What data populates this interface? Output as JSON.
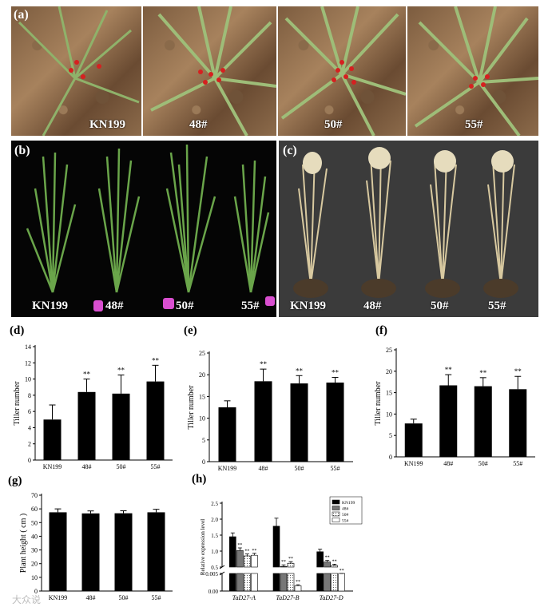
{
  "panel_a": {
    "letter": "(a)",
    "labels": [
      "KN199",
      "48#",
      "50#",
      "55#"
    ]
  },
  "panel_b": {
    "letter": "(b)",
    "labels": [
      "KN199",
      "48#",
      "50#",
      "55#"
    ]
  },
  "panel_c": {
    "letter": "(c)",
    "labels": [
      "KN199",
      "48#",
      "50#",
      "55#"
    ]
  },
  "watermark": "大众说",
  "colors": {
    "bar": "#000000",
    "leaf": "#5f9a3a",
    "dry": "#d8c9a0"
  },
  "chart_data": [
    {
      "id": "d",
      "letter": "(d)",
      "type": "bar",
      "categories": [
        "KN199",
        "48#",
        "50#",
        "55#"
      ],
      "values": [
        5.0,
        8.4,
        8.2,
        9.7
      ],
      "errors": [
        1.8,
        1.6,
        2.3,
        2.0
      ],
      "significance": [
        "",
        "**",
        "**",
        "**"
      ],
      "ylabel": "Tiller number",
      "ylim": [
        0,
        14
      ],
      "yticks": [
        0,
        2,
        4,
        6,
        8,
        10,
        12,
        14
      ]
    },
    {
      "id": "e",
      "letter": "(e)",
      "type": "bar",
      "categories": [
        "KN199",
        "48#",
        "50#",
        "55#"
      ],
      "values": [
        12.5,
        18.5,
        18.0,
        18.2
      ],
      "errors": [
        1.5,
        2.8,
        1.8,
        1.2
      ],
      "significance": [
        "",
        "**",
        "**",
        "**"
      ],
      "ylabel": "Tiller number",
      "ylim": [
        0,
        25
      ],
      "yticks": [
        0,
        5,
        10,
        15,
        20,
        25
      ]
    },
    {
      "id": "f",
      "letter": "(f)",
      "type": "bar",
      "categories": [
        "KN199",
        "48#",
        "50#",
        "55#"
      ],
      "values": [
        7.8,
        16.7,
        16.5,
        15.8
      ],
      "errors": [
        1.0,
        2.5,
        2.0,
        3.0
      ],
      "significance": [
        "",
        "**",
        "**",
        "**"
      ],
      "ylabel": "Tiller number",
      "ylim": [
        0,
        25
      ],
      "yticks": [
        0,
        5,
        10,
        15,
        20,
        25
      ]
    },
    {
      "id": "g",
      "letter": "(g)",
      "type": "bar",
      "categories": [
        "KN199",
        "48#",
        "50#",
        "55#"
      ],
      "values": [
        57.5,
        56.7,
        56.8,
        57.5
      ],
      "errors": [
        2.5,
        1.8,
        1.8,
        2.2
      ],
      "significance": [
        "",
        "",
        "",
        ""
      ],
      "ylabel": "Plant height ( cm )",
      "ylim": [
        0,
        70
      ],
      "yticks": [
        0,
        10,
        20,
        30,
        40,
        50,
        60,
        70
      ]
    },
    {
      "id": "h",
      "letter": "(h)",
      "type": "bar",
      "categories": [
        "TaD27-A",
        "TaD27-B",
        "TaD27-D"
      ],
      "series": [
        {
          "name": "KN199",
          "values": [
            1.45,
            1.78,
            0.98
          ],
          "errors": [
            0.12,
            0.25,
            0.08
          ]
        },
        {
          "name": "48#",
          "values": [
            1.02,
            0.52,
            0.66
          ],
          "errors": [
            0.08,
            0.05,
            0.05
          ]
        },
        {
          "name": "50#",
          "values": [
            0.85,
            0.62,
            0.55
          ],
          "errors": [
            0.06,
            0.05,
            0.04
          ]
        },
        {
          "name": "55#",
          "values": [
            0.87,
            0.0015,
            0.31
          ],
          "errors": [
            0.06,
            0.0003,
            0.03
          ]
        }
      ],
      "significance": [
        [
          "",
          "**",
          "**",
          "**"
        ],
        [
          "",
          "**",
          "**",
          "**"
        ],
        [
          "",
          "**",
          "**",
          "**"
        ]
      ],
      "ylabel": "Relative expression level",
      "ylim_upper": [
        0.5,
        2.5
      ],
      "yticks_upper": [
        "0.5",
        "1.0",
        "1.5",
        "2.0",
        "2.5"
      ],
      "ylim_lower": [
        0,
        0.005
      ],
      "yticks_lower": [
        "0.00",
        "0.005"
      ]
    }
  ]
}
